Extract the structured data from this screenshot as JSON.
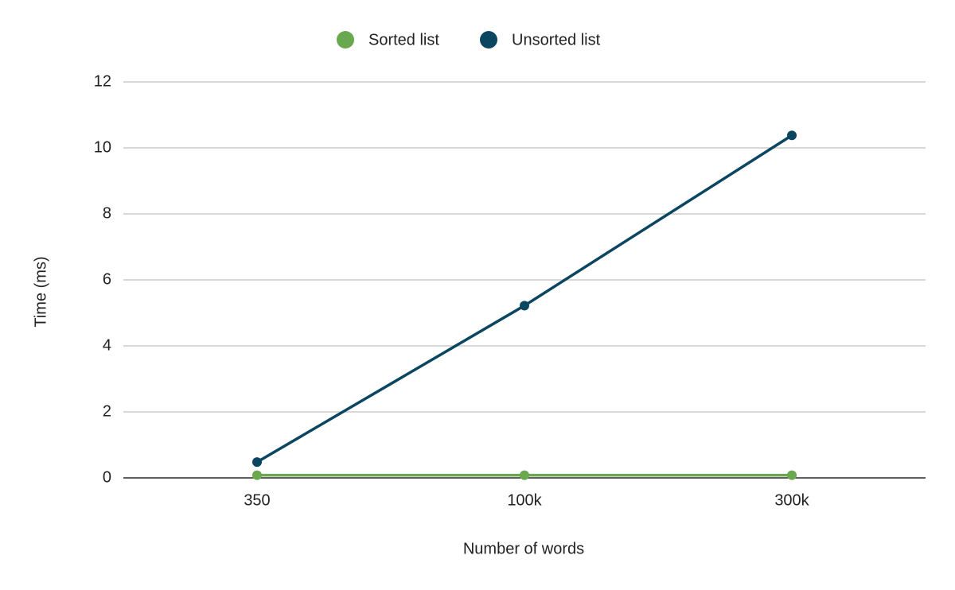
{
  "chart_data": {
    "type": "line",
    "x_label": "Number of words",
    "y_label": "Time (ms)",
    "categories": [
      "350",
      "100k",
      "300k"
    ],
    "series": [
      {
        "name": "Sorted list",
        "color": "#6aa84f",
        "values": [
          0.08,
          0.08,
          0.08
        ]
      },
      {
        "name": "Unsorted list",
        "color": "#0b4661",
        "values": [
          0.48,
          5.22,
          10.38
        ]
      }
    ],
    "ylim": [
      0,
      12
    ],
    "yticks": [
      0,
      2,
      4,
      6,
      8,
      10,
      12
    ],
    "grid": true,
    "legend": "top"
  }
}
